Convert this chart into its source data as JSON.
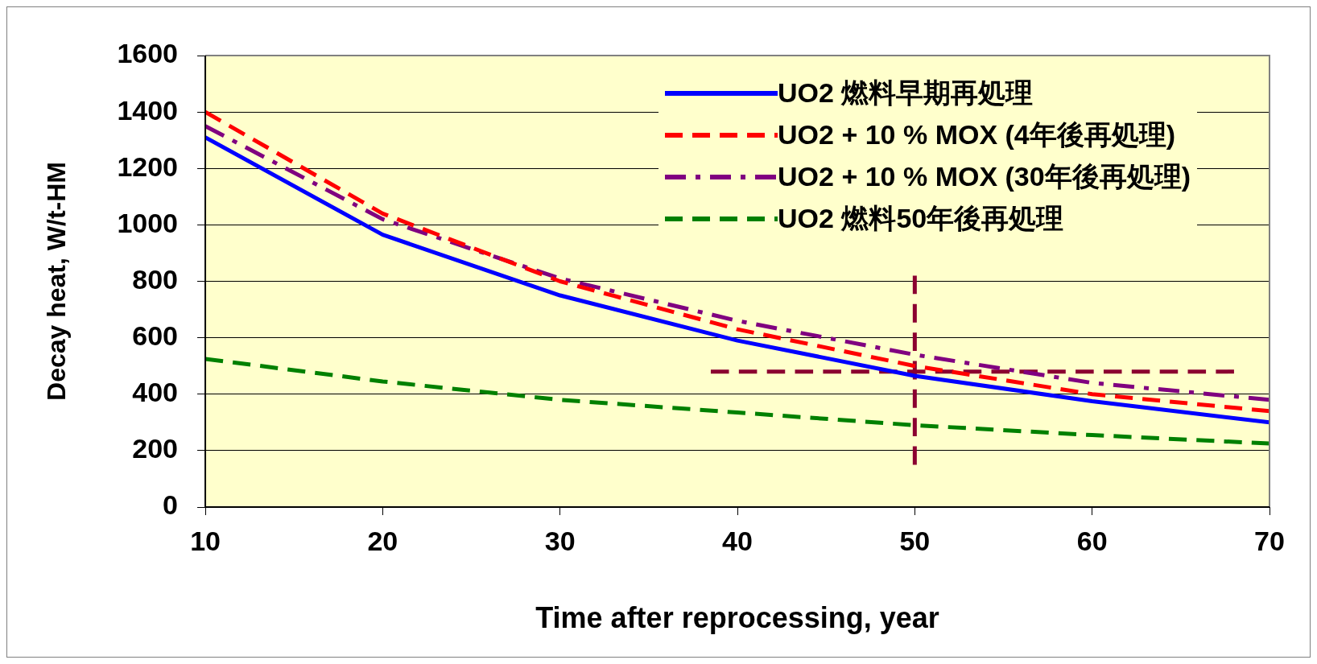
{
  "chart_data": {
    "type": "line",
    "xlabel": "Time after reprocessing, year",
    "ylabel": "Decay heat, W/t-HM",
    "x": [
      10,
      20,
      30,
      40,
      50,
      60,
      70
    ],
    "xlim": [
      10,
      70
    ],
    "xticks": [
      10,
      20,
      30,
      40,
      50,
      60,
      70
    ],
    "ylim": [
      0,
      1600
    ],
    "yticks": [
      0,
      200,
      400,
      600,
      800,
      1000,
      1200,
      1400,
      1600
    ],
    "grid": "y",
    "legend": "top right",
    "marker": "none",
    "series": [
      {
        "name": "UO2 燃料早期再処理",
        "color": "#0000ff",
        "line_style": "solid",
        "values": [
          1310,
          965,
          750,
          590,
          465,
          375,
          300
        ]
      },
      {
        "name": "UO2 + 10 % MOX (4年後再処理)",
        "color": "#ff0000",
        "line_style": "dashed",
        "values": [
          1400,
          1040,
          800,
          630,
          500,
          400,
          340
        ]
      },
      {
        "name": "UO2 + 10 % MOX (30年後再処理)",
        "color": "#800080",
        "line_style": "dashdot",
        "values": [
          1350,
          1020,
          810,
          660,
          540,
          440,
          380
        ]
      },
      {
        "name": "UO2 燃料50年後再処理",
        "color": "#008000",
        "line_style": "dashed",
        "values": [
          525,
          445,
          380,
          335,
          290,
          255,
          225
        ]
      },
      {
        "color": "#8b0030",
        "line_style": "dashed",
        "x": [
          38.5,
          68
        ],
        "values": [
          480,
          480
        ]
      },
      {
        "color": "#8b0030",
        "line_style": "dashed",
        "x": [
          50,
          50
        ],
        "values": [
          150,
          820
        ]
      }
    ]
  }
}
